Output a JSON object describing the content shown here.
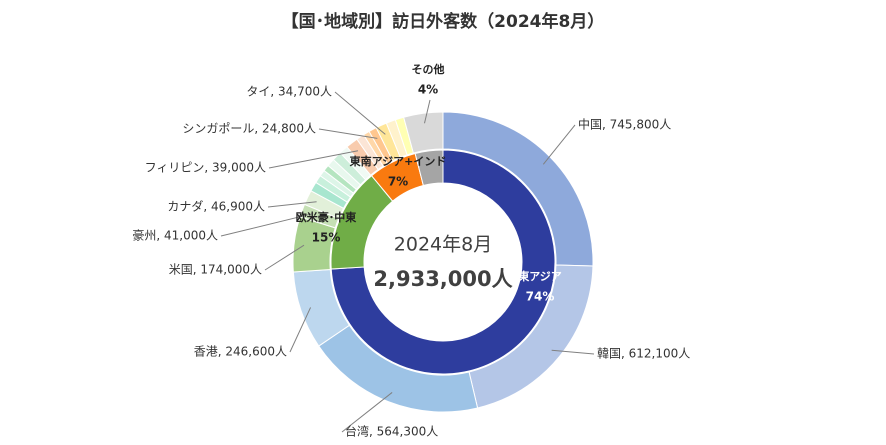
{
  "chart_data": {
    "type": "donut",
    "title": "【国･地域別】訪日外客数（2024年8月）",
    "center_labels": [
      "2024年8月",
      "2,933,000人"
    ],
    "inner": {
      "categories": [
        "東アジア",
        "欧米豪･中東",
        "東南アジア+インド",
        "その他"
      ],
      "values": [
        74,
        15,
        7,
        4
      ],
      "value_labels": [
        "74%",
        "15%",
        "7%",
        "4%"
      ],
      "colors": [
        "#2e3d9e",
        "#70ad47",
        "#f97a0f",
        "#a5a5a5"
      ]
    },
    "outer": {
      "values": [
        745800,
        612100,
        564300,
        246600,
        174000,
        41000,
        46900,
        30000,
        25000,
        20000,
        20000,
        25000,
        30000,
        28000,
        39000,
        25000,
        20000,
        24800,
        34700,
        30000,
        27000,
        123800
      ],
      "value_labels": [
        "中国, 745,800人",
        "韓国, 612,100人",
        "台湾, 564,300人",
        "香港, 246,600人",
        "米国, 174,000人",
        "豪州, 41,000人",
        "カナダ, 46,900人",
        null,
        null,
        null,
        null,
        null,
        null,
        null,
        "フィリピン, 39,000人",
        null,
        null,
        "シンガポール, 24,800人",
        "タイ, 34,700人",
        null,
        null,
        null
      ],
      "colors": [
        "#8ea9db",
        "#b4c6e7",
        "#9dc3e6",
        "#bdd7ee",
        "#a9d18e",
        "#c5e0b4",
        "#e2f0d9",
        "#a8e6cf",
        "#c8f0dc",
        "#ddf5e8",
        "#b5e5c0",
        "#e8f8ee",
        "#cdeeda",
        "#f0faf4",
        "#f8cbad",
        "#fbe5d6",
        "#ffd7a8",
        "#ffc78f",
        "#ffe699",
        "#fff2cc",
        "#ffffb3",
        "#d9d9d9"
      ]
    }
  }
}
